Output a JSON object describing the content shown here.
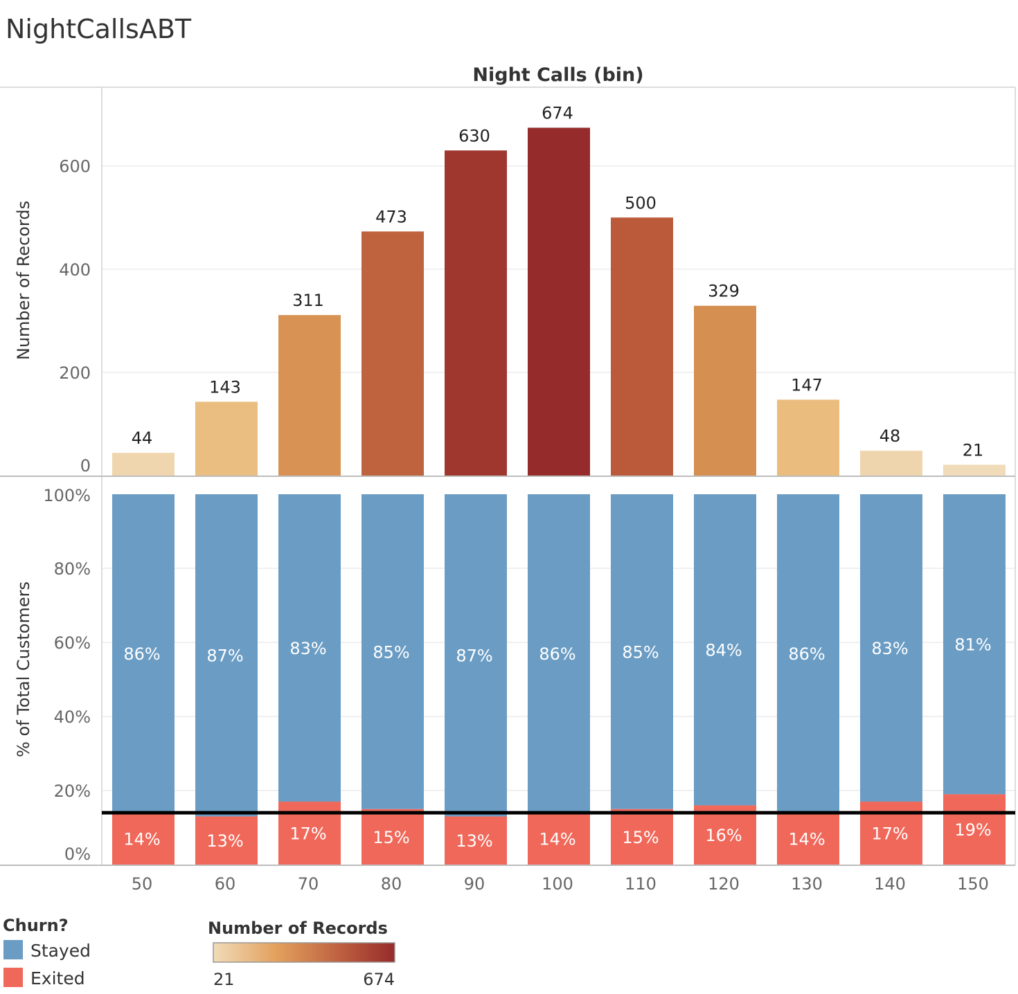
{
  "sheet_title": "NightCallsABT",
  "column_header": "Night Calls (bin)",
  "chart_data": [
    {
      "type": "bar",
      "title": "Night Calls (bin)",
      "xlabel": "",
      "ylabel": "Number of Records",
      "categories": [
        "50",
        "60",
        "70",
        "80",
        "90",
        "100",
        "110",
        "120",
        "130",
        "140",
        "150"
      ],
      "values": [
        44,
        143,
        311,
        473,
        630,
        674,
        500,
        329,
        147,
        48,
        21
      ],
      "value_labels": [
        "44",
        "143",
        "311",
        "473",
        "630",
        "674",
        "500",
        "329",
        "147",
        "48",
        "21"
      ],
      "yticks": [
        "0",
        "200",
        "400",
        "600"
      ],
      "ylim": [
        0,
        740
      ],
      "grid": true,
      "color_scale": {
        "title": "Number of Records",
        "min": 21,
        "max": 674,
        "min_label": "21",
        "max_label": "674",
        "colors": [
          "#f0dcb9",
          "#e8b46e",
          "#d38a4d",
          "#b9573a",
          "#962b2b"
        ]
      }
    },
    {
      "type": "bar",
      "stacked": true,
      "xlabel": "",
      "ylabel": "% of Total Customers",
      "categories": [
        "50",
        "60",
        "70",
        "80",
        "90",
        "100",
        "110",
        "120",
        "130",
        "140",
        "150"
      ],
      "series": [
        {
          "name": "Stayed",
          "color": "#6a9cc4",
          "values": [
            86,
            87,
            83,
            85,
            87,
            86,
            85,
            84,
            86,
            83,
            81
          ],
          "labels": [
            "86%",
            "87%",
            "83%",
            "85%",
            "87%",
            "86%",
            "85%",
            "84%",
            "86%",
            "83%",
            "81%"
          ]
        },
        {
          "name": "Exited",
          "color": "#f0685a",
          "values": [
            14,
            13,
            17,
            15,
            13,
            14,
            15,
            16,
            14,
            17,
            19
          ],
          "labels": [
            "14%",
            "13%",
            "17%",
            "15%",
            "13%",
            "14%",
            "15%",
            "16%",
            "14%",
            "17%",
            "19%"
          ]
        }
      ],
      "yticks": [
        "0%",
        "20%",
        "40%",
        "60%",
        "80%",
        "100%"
      ],
      "ylim": [
        0,
        100
      ],
      "reference_line": 14
    }
  ],
  "legend": {
    "churn_title": "Churn?",
    "churn_items": [
      {
        "label": "Stayed",
        "color": "#6a9cc4"
      },
      {
        "label": "Exited",
        "color": "#f0685a"
      }
    ],
    "records_title": "Number of Records",
    "records_min_label": "21",
    "records_max_label": "674"
  }
}
